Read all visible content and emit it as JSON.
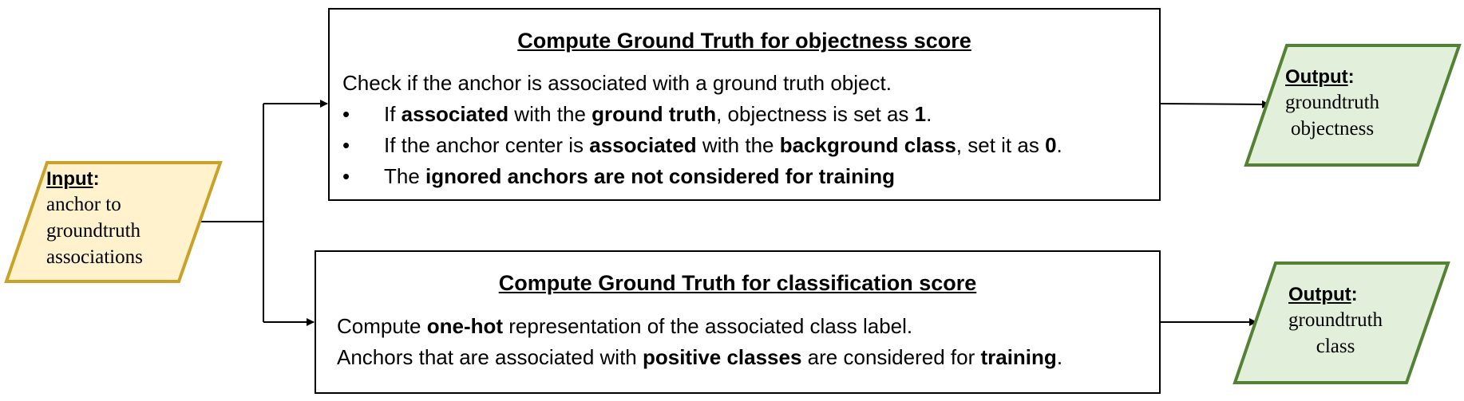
{
  "input": {
    "heading": "Input",
    "lines": [
      "anchor to",
      "groundtruth",
      "associations"
    ]
  },
  "objectness": {
    "title": "Compute Ground Truth for objectness score",
    "intro": "Check if the anchor is associated with a ground truth object.",
    "bullet_symbol": "•",
    "bullets": [
      {
        "t1": "If ",
        "b1": "associated",
        "t2": " with the ",
        "b2": "ground truth",
        "t3": ", objectness is set as ",
        "b3": "1",
        "t4": "."
      },
      {
        "t1": "If the anchor center is ",
        "b1": "associated",
        "t2": " with the ",
        "b2": "background class",
        "t3": ", set it as ",
        "b3": "0",
        "t4": "."
      },
      {
        "t1": "The ",
        "b1": "ignored anchors are not considered for training"
      }
    ]
  },
  "classification": {
    "title": "Compute Ground Truth for classification score",
    "line1": {
      "t1": "Compute ",
      "b1": "one-hot",
      "t2": " representation of the associated class label."
    },
    "line2": {
      "t1": "Anchors that are associated with ",
      "b1": "positive classes",
      "t2": " are considered for ",
      "b2": "training",
      "t3": "."
    }
  },
  "output_objectness": {
    "heading": "Output",
    "lines": [
      "groundtruth",
      "objectness"
    ]
  },
  "output_class": {
    "heading": "Output",
    "lines": [
      "groundtruth",
      "class"
    ]
  },
  "colors": {
    "input_fill": "#fff2cc",
    "input_stroke": "#c9a227",
    "output_fill": "#e2efda",
    "output_stroke": "#548235",
    "line": "#000000"
  }
}
